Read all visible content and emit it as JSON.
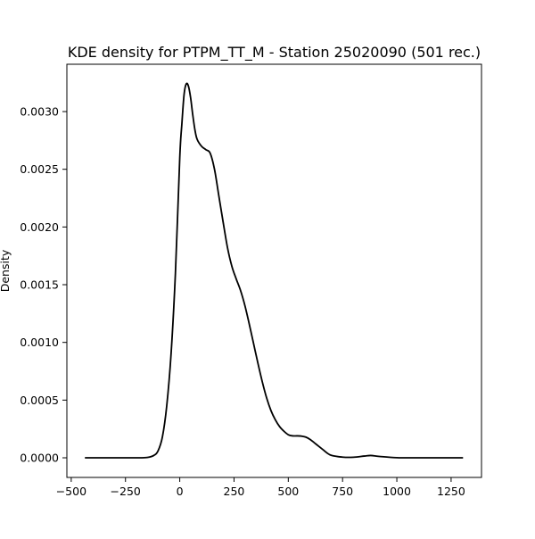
{
  "chart_data": {
    "type": "line",
    "title": "KDE density for PTPM_TT_M - Station 25020090 (501 rec.)",
    "xlabel": "",
    "ylabel": "Density",
    "xlim": [
      -520,
      1390
    ],
    "ylim": [
      -0.00017,
      0.00341
    ],
    "xticks": [
      -500,
      -250,
      0,
      250,
      500,
      750,
      1000,
      1250
    ],
    "xtick_labels": [
      "−500",
      "−250",
      "0",
      "250",
      "500",
      "750",
      "1000",
      "1250"
    ],
    "yticks": [
      0.0,
      0.0005,
      0.001,
      0.0015,
      0.002,
      0.0025,
      0.003
    ],
    "ytick_labels": [
      "0.0000",
      "0.0005",
      "0.0010",
      "0.0015",
      "0.0020",
      "0.0025",
      "0.0030"
    ],
    "grid": false,
    "line_color": "#000000",
    "series": [
      {
        "x": [
          -437,
          -300,
          -200,
          -150,
          -120,
          -100,
          -80,
          -60,
          -40,
          -20,
          0,
          10,
          20,
          30,
          40,
          50,
          60,
          70,
          80,
          100,
          120,
          140,
          160,
          180,
          200,
          220,
          240,
          260,
          280,
          300,
          320,
          340,
          360,
          380,
          400,
          420,
          440,
          460,
          480,
          500,
          520,
          540,
          560,
          580,
          600,
          620,
          640,
          660,
          680,
          700,
          750,
          800,
          850,
          880,
          920,
          1000,
          1100,
          1200,
          1305
        ],
        "y": [
          0.0,
          0.0,
          0.0,
          3e-06,
          2e-05,
          6e-05,
          0.00018,
          0.00045,
          0.0009,
          0.0016,
          0.0026,
          0.0029,
          0.00315,
          0.00324,
          0.00322,
          0.00312,
          0.00297,
          0.00284,
          0.00276,
          0.0027,
          0.00267,
          0.00264,
          0.0025,
          0.00227,
          0.00204,
          0.00182,
          0.00166,
          0.00155,
          0.00145,
          0.00132,
          0.00116,
          0.00099,
          0.00082,
          0.00066,
          0.00052,
          0.00041,
          0.00033,
          0.00027,
          0.00023,
          0.0002,
          0.00019,
          0.00019,
          0.000188,
          0.00018,
          0.00016,
          0.00013,
          0.0001,
          7e-05,
          4e-05,
          2e-05,
          6e-06,
          5e-06,
          1.5e-05,
          2e-05,
          1.2e-05,
          1e-06,
          0.0,
          0.0,
          0.0
        ]
      }
    ]
  }
}
